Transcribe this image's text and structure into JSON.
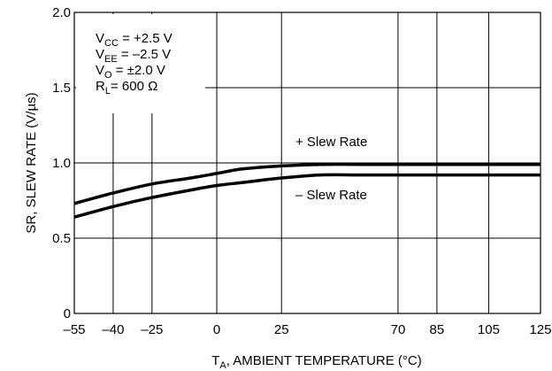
{
  "chart_data": {
    "type": "line",
    "xlabel": {
      "main": "T",
      "sub": "A",
      "rest": ", AMBIENT TEMPERATURE (°C)"
    },
    "ylabel": "SR, SLEW RATE (V/µs)",
    "xlim": [
      -55,
      125
    ],
    "ylim": [
      0,
      2.0
    ],
    "x_ticks": [
      {
        "value": -55,
        "label": "–55"
      },
      {
        "value": -40,
        "label": "–40"
      },
      {
        "value": -25,
        "label": "–25"
      },
      {
        "value": 0,
        "label": "0"
      },
      {
        "value": 25,
        "label": "25"
      },
      {
        "value": 70,
        "label": "70"
      },
      {
        "value": 85,
        "label": "85"
      },
      {
        "value": 105,
        "label": "105"
      },
      {
        "value": 125,
        "label": "125"
      }
    ],
    "y_ticks": [
      {
        "value": 0,
        "label": "0"
      },
      {
        "value": 0.5,
        "label": "0.5"
      },
      {
        "value": 1.0,
        "label": "1.0"
      },
      {
        "value": 1.5,
        "label": "1.5"
      },
      {
        "value": 2.0,
        "label": "2.0"
      }
    ],
    "grid": true,
    "series": [
      {
        "name": "+ Slew Rate",
        "x": [
          -55,
          -40,
          -25,
          -10,
          0,
          10,
          25,
          40,
          55,
          70,
          85,
          105,
          125
        ],
        "values": [
          0.73,
          0.8,
          0.86,
          0.9,
          0.93,
          0.96,
          0.98,
          0.99,
          0.99,
          0.99,
          0.99,
          0.99,
          0.99
        ]
      },
      {
        "name": "– Slew Rate",
        "x": [
          -55,
          -40,
          -25,
          -10,
          0,
          10,
          25,
          40,
          55,
          70,
          85,
          105,
          125
        ],
        "values": [
          0.64,
          0.71,
          0.77,
          0.82,
          0.85,
          0.87,
          0.9,
          0.92,
          0.92,
          0.92,
          0.92,
          0.92,
          0.92
        ]
      }
    ],
    "conditions": [
      {
        "main": "V",
        "sub": "CC",
        "rest": " = +2.5 V"
      },
      {
        "main": "V",
        "sub": "EE",
        "rest": " = –2.5 V"
      },
      {
        "main": "V",
        "sub": "O",
        "rest": " = ±2.0 V"
      },
      {
        "main": "R",
        "sub": "L",
        "rest": "= 600 Ω"
      }
    ]
  }
}
